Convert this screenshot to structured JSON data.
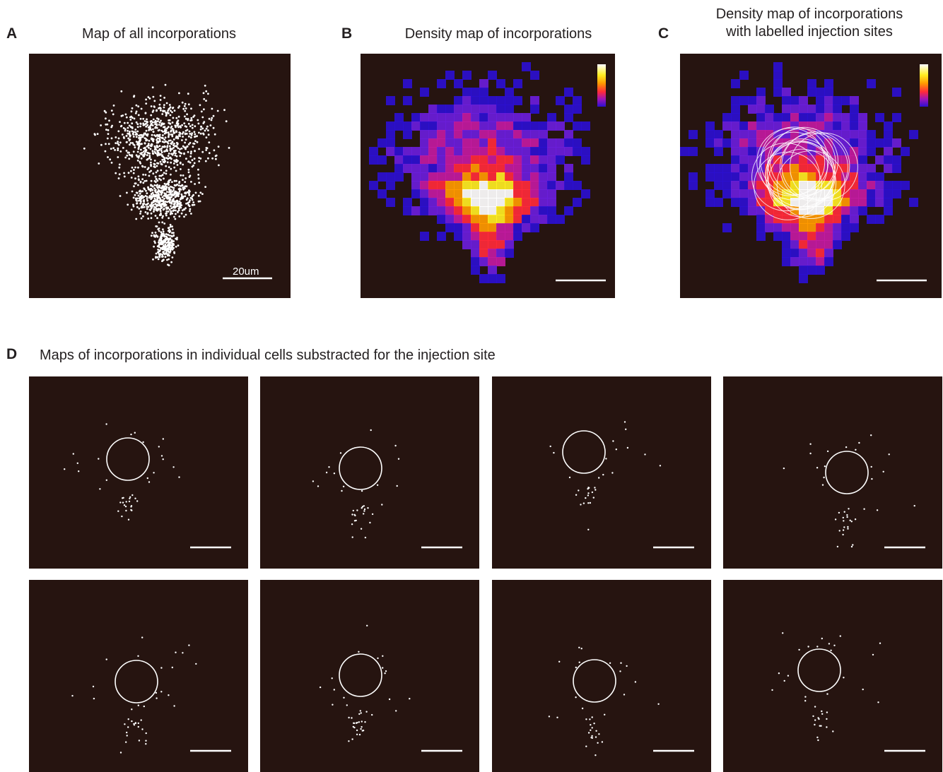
{
  "figure": {
    "bg_color": "#261410",
    "mark_color": "#ffffff",
    "colormap": [
      "#ffffff",
      "#ffee22",
      "#ff9a00",
      "#ff2a3a",
      "#c21aa0",
      "#6a1ddb",
      "#2b0fd0"
    ],
    "panels": {
      "A": {
        "letter": "A",
        "title": "Map of all incorporations",
        "scalebar_label": "20um"
      },
      "B": {
        "letter": "B",
        "title": "Density map of incorporations"
      },
      "C": {
        "letter": "C",
        "title_line1": "Density map of incorporations",
        "title_line2": "with labelled injection sites"
      },
      "D": {
        "letter": "D",
        "title": "Maps of incorporations in individual cells substracted for the injection site",
        "cell_count": 8
      }
    }
  }
}
